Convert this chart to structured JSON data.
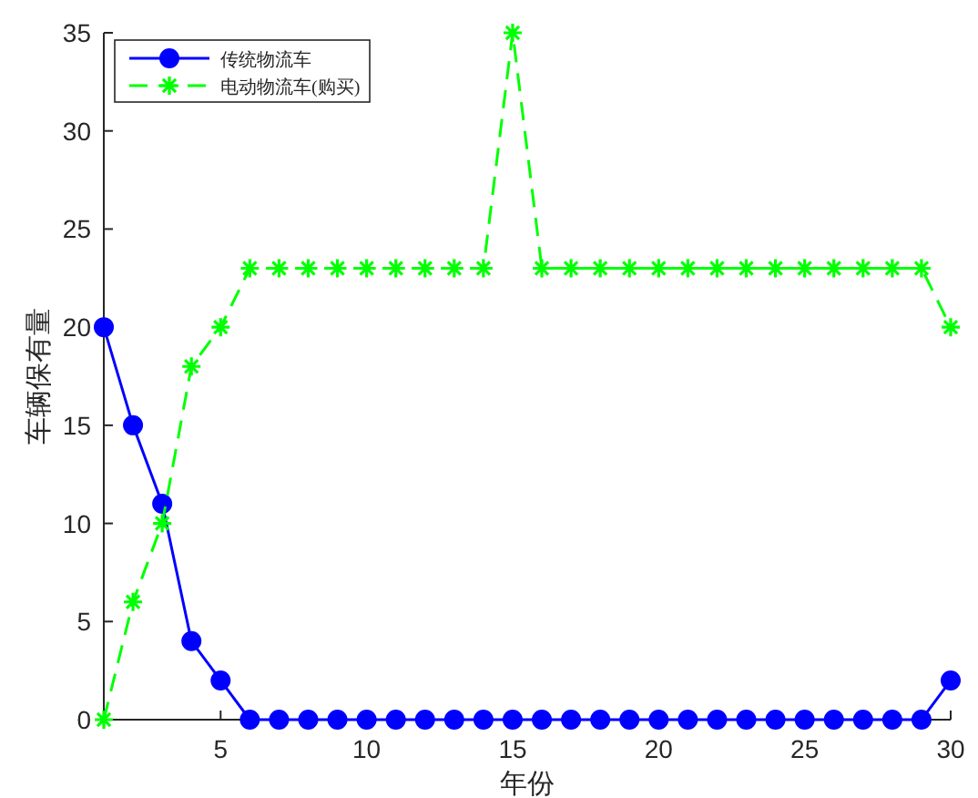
{
  "chart_data": {
    "type": "line",
    "xlabel": "年份",
    "ylabel": "车辆保有量",
    "x": [
      1,
      2,
      3,
      4,
      5,
      6,
      7,
      8,
      9,
      10,
      11,
      12,
      13,
      14,
      15,
      16,
      17,
      18,
      19,
      20,
      21,
      22,
      23,
      24,
      25,
      26,
      27,
      28,
      29,
      30
    ],
    "series": [
      {
        "name": "传统物流车",
        "color": "#0000ff",
        "marker": "circle",
        "line_style": "solid",
        "values": [
          20,
          15,
          11,
          4,
          2,
          0,
          0,
          0,
          0,
          0,
          0,
          0,
          0,
          0,
          0,
          0,
          0,
          0,
          0,
          0,
          0,
          0,
          0,
          0,
          0,
          0,
          0,
          0,
          0,
          2
        ]
      },
      {
        "name": "电动物流车(购买)",
        "color": "#00ff00",
        "marker": "cross",
        "line_style": "dashed",
        "values": [
          0,
          6,
          10,
          18,
          20,
          23,
          23,
          23,
          23,
          23,
          23,
          23,
          23,
          23,
          35,
          23,
          23,
          23,
          23,
          23,
          23,
          23,
          23,
          23,
          23,
          23,
          23,
          23,
          23,
          20
        ]
      }
    ],
    "xlim": [
      1,
      30
    ],
    "xticks": [
      5,
      10,
      15,
      20,
      25,
      30
    ],
    "ylim": [
      0,
      35
    ],
    "yticks": [
      0,
      5,
      10,
      15,
      20,
      25,
      30,
      35
    ],
    "grid": false,
    "legend": "top left"
  }
}
